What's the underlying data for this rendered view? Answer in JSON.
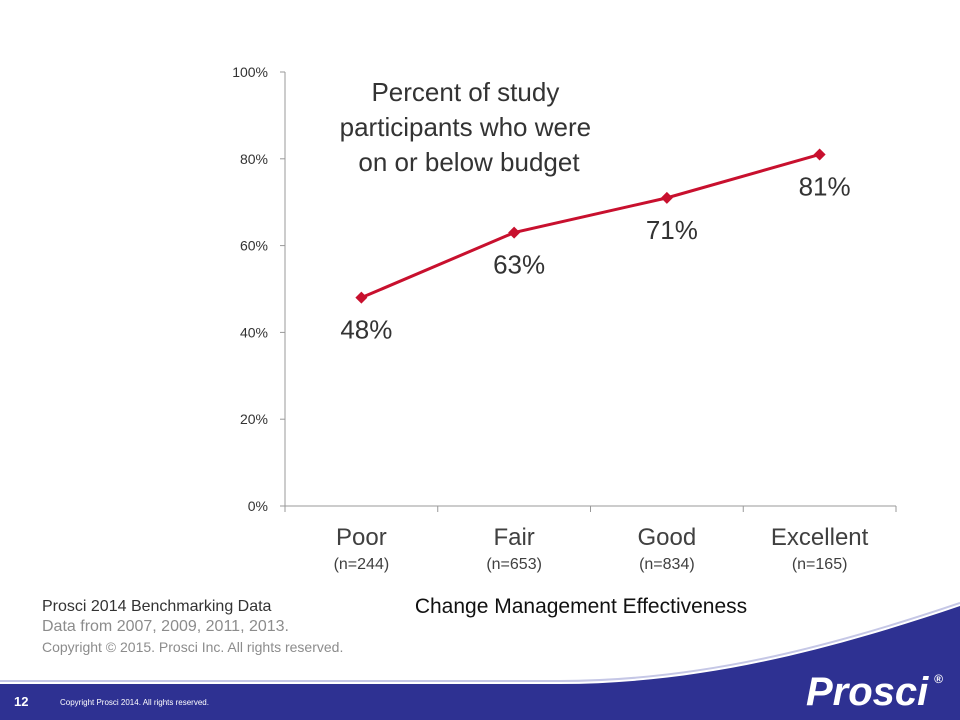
{
  "chart_data": {
    "type": "line",
    "title": "Percent of study participants who were on or below budget",
    "title_lines": [
      "Percent of study",
      "participants who were",
      "on or below budget"
    ],
    "xlabel": "Change Management Effectiveness",
    "ylabel": "",
    "categories": [
      "Poor",
      "Fair",
      "Good",
      "Excellent"
    ],
    "category_sublabels": [
      "(n=244)",
      "(n=653)",
      "(n=834)",
      "(n=165)"
    ],
    "series": [
      {
        "values": [
          48,
          63,
          71,
          81
        ],
        "data_labels": [
          "48%",
          "63%",
          "71%",
          "81%"
        ]
      }
    ],
    "ylim": [
      0,
      100
    ],
    "yticks": [
      0,
      20,
      40,
      60,
      80,
      100
    ],
    "ytick_labels": [
      "0%",
      "20%",
      "40%",
      "60%",
      "80%",
      "100%"
    ],
    "grid": false,
    "legend": "none",
    "line_color": "#c8102e",
    "marker": "diamond"
  },
  "source": {
    "line1": "Prosci 2014 Benchmarking Data",
    "line2": "Data from 2007, 2009, 2011, 2013.",
    "line3": "Copyright © 2015. Prosci Inc. All rights reserved."
  },
  "footer": {
    "page_number": "12",
    "copyright": "Copyright Prosci 2014. All rights reserved.",
    "brand": "Prosci",
    "brand_mark": "®",
    "band_color": "#2e3192"
  }
}
